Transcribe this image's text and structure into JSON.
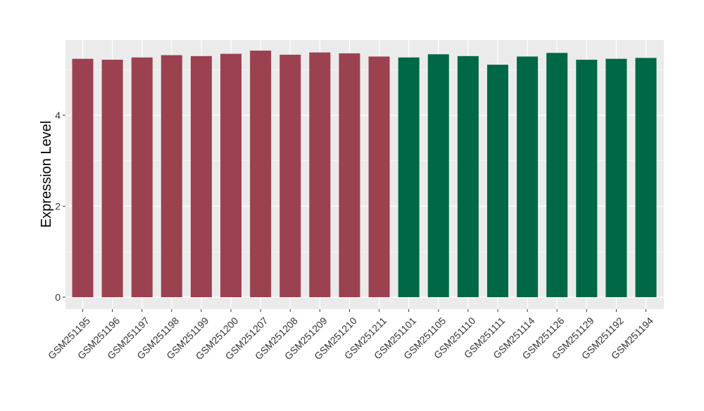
{
  "chart_data": {
    "type": "bar",
    "title": "",
    "xlabel": "",
    "ylabel": "Expression Level",
    "ylim": [
      0,
      5.6
    ],
    "yticks": [
      0,
      2,
      4
    ],
    "grid": true,
    "categories": [
      "GSM251195",
      "GSM251196",
      "GSM251197",
      "GSM251198",
      "GSM251199",
      "GSM251200",
      "GSM251207",
      "GSM251208",
      "GSM251209",
      "GSM251210",
      "GSM251211",
      "GSM251101",
      "GSM251105",
      "GSM251110",
      "GSM251111",
      "GSM251114",
      "GSM251126",
      "GSM251129",
      "GSM251192",
      "GSM251194"
    ],
    "values": [
      5.24,
      5.22,
      5.27,
      5.32,
      5.3,
      5.35,
      5.42,
      5.33,
      5.38,
      5.36,
      5.29,
      5.27,
      5.34,
      5.3,
      5.11,
      5.29,
      5.37,
      5.22,
      5.24,
      5.26
    ],
    "groups": [
      0,
      0,
      0,
      0,
      0,
      0,
      0,
      0,
      0,
      0,
      0,
      1,
      1,
      1,
      1,
      1,
      1,
      1,
      1,
      1
    ],
    "group_colors": [
      "#9B4150",
      "#006846"
    ],
    "panel_color": "#EBEBEB",
    "grid_color": "#FFFFFF"
  }
}
